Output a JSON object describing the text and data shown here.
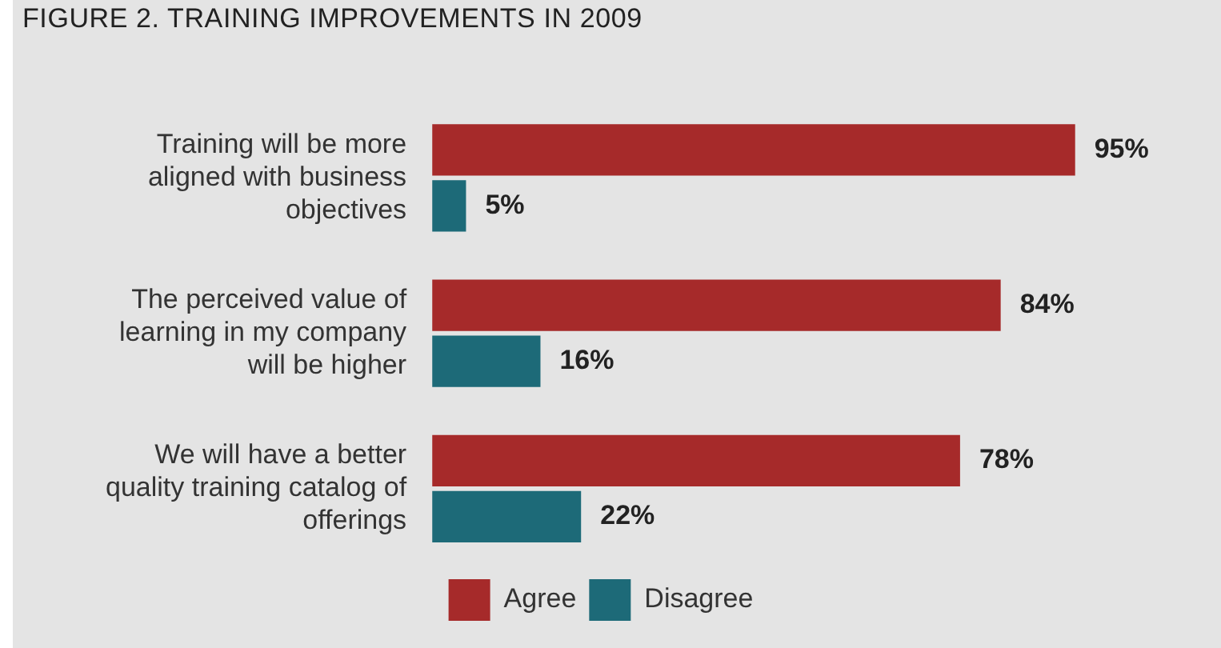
{
  "chart_data": {
    "type": "bar",
    "orientation": "horizontal",
    "title": "FIGURE 2. TRAINING IMPROVEMENTS IN 2009",
    "categories": [
      "Training will be more aligned with business objectives",
      "The perceived value of learning in my company will be higher",
      "We will have a better quality training catalog of offerings"
    ],
    "series": [
      {
        "name": "Agree",
        "color": "#a62a2a",
        "values": [
          95,
          84,
          78
        ],
        "value_labels": [
          "95%",
          "84%",
          "78%"
        ]
      },
      {
        "name": "Disagree",
        "color": "#1d6a78",
        "values": [
          5,
          16,
          22
        ],
        "value_labels": [
          "5%",
          "16%",
          "22%"
        ]
      }
    ],
    "tick_labels": "y",
    "legend": "bottom"
  }
}
